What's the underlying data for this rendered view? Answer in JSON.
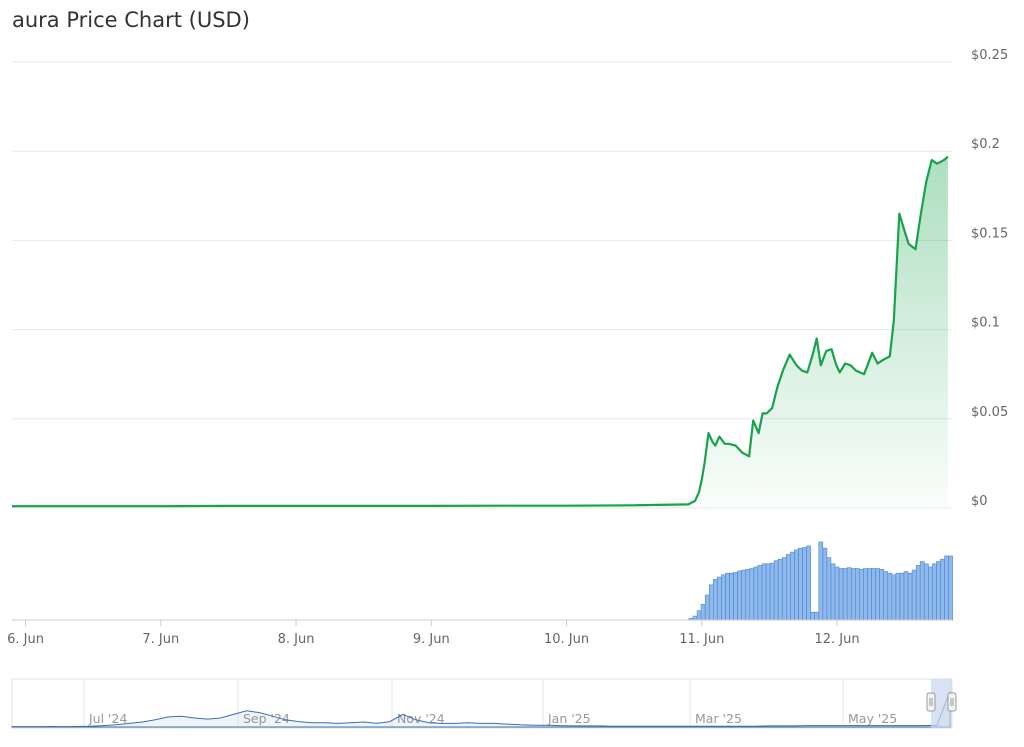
{
  "title": "aura Price Chart (USD)",
  "colors": {
    "price_line": "#16a34a",
    "price_fill": "#16a34a",
    "volume_bar": "#8fb9ea",
    "volume_stroke": "#4a86d8",
    "navigator_line": "#3b6fb0",
    "navigator_handle": "#c9d5ec",
    "grid": "#e8e8e8"
  },
  "chart_data": {
    "type": "line",
    "title": "aura Price Chart (USD)",
    "y_axis": {
      "ticks": [
        "$0",
        "$0.05",
        "$0.1",
        "$0.15",
        "$0.2",
        "$0.25"
      ],
      "tick_values": [
        0,
        0.05,
        0.1,
        0.15,
        0.2,
        0.25
      ],
      "range": [
        0,
        0.25
      ],
      "position": "right"
    },
    "x_axis": {
      "ticks": [
        "6. Jun",
        "7. Jun",
        "8. Jun",
        "9. Jun",
        "10. Jun",
        "11. Jun",
        "12. Jun"
      ],
      "range_days": [
        5.9,
        12.85
      ]
    },
    "grid": true,
    "series": [
      {
        "type": "area",
        "x_days": [
          5.9,
          6.5,
          7,
          7.5,
          8,
          8.5,
          9,
          9.5,
          10,
          10.5,
          10.9,
          10.95,
          10.98,
          11.0,
          11.02,
          11.05,
          11.08,
          11.1,
          11.13,
          11.17,
          11.2,
          11.25,
          11.3,
          11.35,
          11.38,
          11.42,
          11.45,
          11.48,
          11.52,
          11.56,
          11.6,
          11.65,
          11.7,
          11.74,
          11.78,
          11.82,
          11.85,
          11.88,
          11.92,
          11.96,
          11.99,
          12.02,
          12.06,
          12.1,
          12.14,
          12.2,
          12.26,
          12.3,
          12.34,
          12.39,
          12.42,
          12.46,
          12.5,
          12.53,
          12.58,
          12.62,
          12.66,
          12.7,
          12.74,
          12.79,
          12.82
        ],
        "y": [
          0.001,
          0.001,
          0.001,
          0.0012,
          0.0012,
          0.0012,
          0.0012,
          0.0013,
          0.0013,
          0.0015,
          0.002,
          0.004,
          0.009,
          0.016,
          0.025,
          0.042,
          0.037,
          0.035,
          0.04,
          0.036,
          0.036,
          0.035,
          0.031,
          0.029,
          0.049,
          0.042,
          0.053,
          0.053,
          0.056,
          0.068,
          0.077,
          0.086,
          0.08,
          0.077,
          0.076,
          0.086,
          0.095,
          0.08,
          0.088,
          0.089,
          0.081,
          0.076,
          0.081,
          0.08,
          0.077,
          0.075,
          0.087,
          0.081,
          0.083,
          0.085,
          0.105,
          0.165,
          0.155,
          0.148,
          0.145,
          0.165,
          0.183,
          0.195,
          0.193,
          0.195,
          0.197
        ]
      },
      {
        "type": "volume",
        "x_days": [
          10.92,
          10.95,
          10.98,
          11.01,
          11.04,
          11.07,
          11.1,
          11.13,
          11.16,
          11.19,
          11.22,
          11.25,
          11.28,
          11.31,
          11.34,
          11.37,
          11.4,
          11.43,
          11.46,
          11.49,
          11.52,
          11.55,
          11.58,
          11.61,
          11.64,
          11.67,
          11.7,
          11.73,
          11.76,
          11.79,
          11.82,
          11.85,
          11.88,
          11.91,
          11.94,
          11.97,
          12.0,
          12.03,
          12.06,
          12.09,
          12.12,
          12.15,
          12.18,
          12.21,
          12.24,
          12.27,
          12.3,
          12.33,
          12.36,
          12.39,
          12.42,
          12.45,
          12.48,
          12.51,
          12.54,
          12.57,
          12.6,
          12.63,
          12.66,
          12.69,
          12.72,
          12.75,
          12.78,
          12.81,
          12.84
        ],
        "volume_rel": [
          0.02,
          0.05,
          0.12,
          0.2,
          0.32,
          0.45,
          0.52,
          0.55,
          0.58,
          0.6,
          0.6,
          0.61,
          0.63,
          0.64,
          0.65,
          0.66,
          0.68,
          0.7,
          0.72,
          0.72,
          0.73,
          0.76,
          0.78,
          0.8,
          0.84,
          0.87,
          0.9,
          0.92,
          0.93,
          0.95,
          0.1,
          0.1,
          1.0,
          0.92,
          0.8,
          0.72,
          0.68,
          0.66,
          0.66,
          0.67,
          0.66,
          0.66,
          0.65,
          0.66,
          0.66,
          0.66,
          0.66,
          0.65,
          0.62,
          0.6,
          0.58,
          0.6,
          0.6,
          0.62,
          0.6,
          0.64,
          0.7,
          0.75,
          0.72,
          0.68,
          0.72,
          0.75,
          0.78,
          0.82,
          0.82
        ]
      }
    ],
    "navigator": {
      "ticks": [
        "Jul '24",
        "Sep '24",
        "Nov '24",
        "Jan '25",
        "Mar '25",
        "May '25"
      ],
      "y": [
        0.01,
        0.01,
        0.012,
        0.014,
        0.012,
        0.015,
        0.02,
        0.04,
        0.06,
        0.1,
        0.14,
        0.2,
        0.28,
        0.3,
        0.25,
        0.22,
        0.25,
        0.35,
        0.45,
        0.4,
        0.3,
        0.2,
        0.15,
        0.12,
        0.12,
        0.1,
        0.12,
        0.14,
        0.1,
        0.15,
        0.35,
        0.2,
        0.12,
        0.1,
        0.1,
        0.12,
        0.1,
        0.1,
        0.08,
        0.06,
        0.05,
        0.05,
        0.04,
        0.03,
        0.03,
        0.03,
        0.02,
        0.02,
        0.02,
        0.02,
        0.02,
        0.02,
        0.02,
        0.02,
        0.02,
        0.02,
        0.02,
        0.02,
        0.03,
        0.03,
        0.03,
        0.04,
        0.04,
        0.04,
        0.04,
        0.04,
        0.04,
        0.04,
        0.04,
        0.04,
        0.04,
        0.05,
        1.0
      ]
    }
  }
}
